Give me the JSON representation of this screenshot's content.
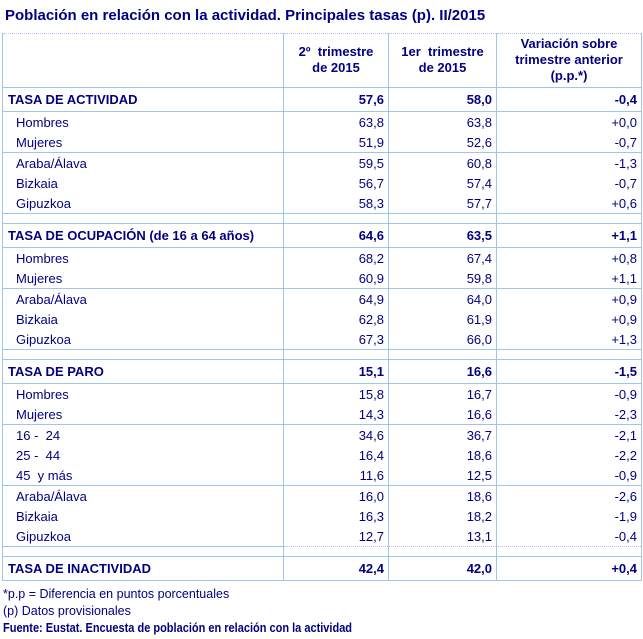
{
  "title": "Población en relación con la actividad. Principales tasas (p). II/2015",
  "colors": {
    "text_navy": "#000080",
    "border_blue": "#9FC5E8",
    "background": "#FFFFFF"
  },
  "table": {
    "columns": [
      "",
      "2º  trimestre\nde 2015",
      "1er  trimestre\nde 2015",
      "Variación sobre\ntrimestre anterior\n(p.p.*)"
    ],
    "sections": [
      {
        "name": "tasa-de-actividad",
        "rows": [
          {
            "label": "TASA DE ACTIVIDAD",
            "q2_2015": "57,6",
            "q1_2015": "58,0",
            "variation": "-0,4",
            "kind": "section"
          },
          {
            "label": "Hombres",
            "q2_2015": "63,8",
            "q1_2015": "63,8",
            "variation": "+0,0",
            "kind": "sub"
          },
          {
            "label": "Mujeres",
            "q2_2015": "51,9",
            "q1_2015": "52,6",
            "variation": "-0,7",
            "kind": "sub",
            "group_end": true
          },
          {
            "label": "Araba/Álava",
            "q2_2015": "59,5",
            "q1_2015": "60,8",
            "variation": "-1,3",
            "kind": "sub"
          },
          {
            "label": "Bizkaia",
            "q2_2015": "56,7",
            "q1_2015": "57,4",
            "variation": "-0,7",
            "kind": "sub"
          },
          {
            "label": "Gipuzkoa",
            "q2_2015": "58,3",
            "q1_2015": "57,7",
            "variation": "+0,6",
            "kind": "sub"
          }
        ]
      },
      {
        "name": "tasa-de-ocupacion",
        "rows": [
          {
            "label": "TASA DE OCUPACIÓN (de 16 a 64 años)",
            "q2_2015": "64,6",
            "q1_2015": "63,5",
            "variation": "+1,1",
            "kind": "section"
          },
          {
            "label": "Hombres",
            "q2_2015": "68,2",
            "q1_2015": "67,4",
            "variation": "+0,8",
            "kind": "sub"
          },
          {
            "label": "Mujeres",
            "q2_2015": "60,9",
            "q1_2015": "59,8",
            "variation": "+1,1",
            "kind": "sub",
            "group_end": true
          },
          {
            "label": "Araba/Álava",
            "q2_2015": "64,9",
            "q1_2015": "64,0",
            "variation": "+0,9",
            "kind": "sub"
          },
          {
            "label": "Bizkaia",
            "q2_2015": "62,8",
            "q1_2015": "61,9",
            "variation": "+0,9",
            "kind": "sub"
          },
          {
            "label": "Gipuzkoa",
            "q2_2015": "67,3",
            "q1_2015": "66,0",
            "variation": "+1,3",
            "kind": "sub"
          }
        ]
      },
      {
        "name": "tasa-de-paro",
        "rows": [
          {
            "label": "TASA DE PARO",
            "q2_2015": "15,1",
            "q1_2015": "16,6",
            "variation": "-1,5",
            "kind": "section"
          },
          {
            "label": "Hombres",
            "q2_2015": "15,8",
            "q1_2015": "16,7",
            "variation": "-0,9",
            "kind": "sub"
          },
          {
            "label": "Mujeres",
            "q2_2015": "14,3",
            "q1_2015": "16,6",
            "variation": "-2,3",
            "kind": "sub",
            "group_end": true
          },
          {
            "label": "16 -  24",
            "q2_2015": "34,6",
            "q1_2015": "36,7",
            "variation": "-2,1",
            "kind": "sub"
          },
          {
            "label": "25 -  44",
            "q2_2015": "16,4",
            "q1_2015": "18,6",
            "variation": "-2,2",
            "kind": "sub"
          },
          {
            "label": "45  y más",
            "q2_2015": "11,6",
            "q1_2015": "12,5",
            "variation": "-0,9",
            "kind": "sub",
            "group_end": true
          },
          {
            "label": "Araba/Álava",
            "q2_2015": "16,0",
            "q1_2015": "18,6",
            "variation": "-2,6",
            "kind": "sub"
          },
          {
            "label": "Bizkaia",
            "q2_2015": "16,3",
            "q1_2015": "18,2",
            "variation": "-1,9",
            "kind": "sub"
          },
          {
            "label": "Gipuzkoa",
            "q2_2015": "12,7",
            "q1_2015": "13,1",
            "variation": "-0,4",
            "kind": "sub"
          }
        ]
      },
      {
        "name": "tasa-de-inactividad",
        "rows": [
          {
            "label": "TASA DE INACTIVIDAD",
            "q2_2015": "42,4",
            "q1_2015": "42,0",
            "variation": "+0,4",
            "kind": "section"
          }
        ]
      }
    ]
  },
  "footnotes": [
    "*p.p = Diferencia en puntos porcentuales",
    "(p) Datos provisionales",
    "Fuente: Eustat. Encuesta de población en relación con la actividad"
  ]
}
